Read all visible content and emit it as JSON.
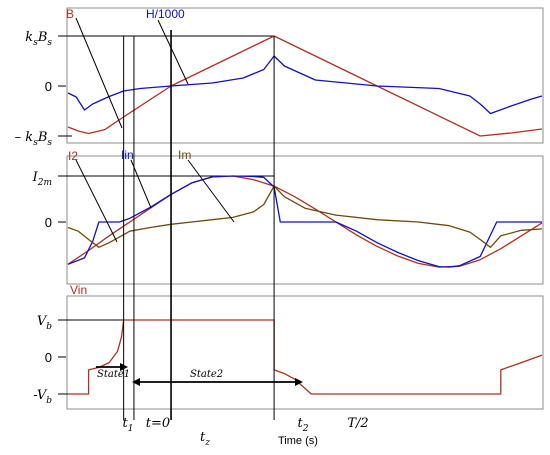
{
  "chart_data": [
    {
      "type": "line",
      "panel": "flux",
      "y_tick_labels": [
        {
          "label": "k_s B_s",
          "main": "k",
          "sub": "s",
          "main2": "B",
          "sub2": "s",
          "y": 1
        },
        {
          "label": "0",
          "y": 0
        },
        {
          "label": "– k_s B_s",
          "main": "– k",
          "sub": "s",
          "main2": "B",
          "sub2": "s",
          "y": -1
        }
      ],
      "ylim": [
        -1.1,
        1.1
      ],
      "series": [
        {
          "name": "B",
          "color": "#b03020",
          "points": [
            [
              0,
              -0.82
            ],
            [
              0.05,
              -0.9
            ],
            [
              0.1,
              -0.95
            ],
            [
              0.18,
              -0.87
            ],
            [
              0.24,
              -0.7
            ],
            [
              0.27,
              -0.62
            ],
            [
              0.5,
              0.0
            ],
            [
              1.0,
              1.0
            ],
            [
              1.5,
              0.0
            ],
            [
              2.0,
              -1.0
            ],
            [
              2.15,
              -0.94
            ],
            [
              2.3,
              -0.86
            ]
          ]
        },
        {
          "name": "H/1000",
          "color": "#1010cc",
          "points": [
            [
              0,
              -0.14
            ],
            [
              0.04,
              -0.22
            ],
            [
              0.08,
              -0.48
            ],
            [
              0.12,
              -0.36
            ],
            [
              0.2,
              -0.21
            ],
            [
              0.27,
              -0.1
            ],
            [
              0.35,
              -0.05
            ],
            [
              0.5,
              0.0
            ],
            [
              0.7,
              0.06
            ],
            [
              0.85,
              0.16
            ],
            [
              0.95,
              0.33
            ],
            [
              1.0,
              0.6
            ],
            [
              1.05,
              0.4
            ],
            [
              1.2,
              0.12
            ],
            [
              1.5,
              0.0
            ],
            [
              1.8,
              -0.05
            ],
            [
              1.95,
              -0.2
            ],
            [
              2.0,
              -0.36
            ],
            [
              2.05,
              -0.55
            ],
            [
              2.15,
              -0.4
            ],
            [
              2.25,
              -0.26
            ],
            [
              2.3,
              -0.2
            ]
          ]
        }
      ]
    },
    {
      "type": "line",
      "panel": "currents",
      "y_tick_labels": [
        {
          "label": "I_2m",
          "main": "I",
          "sub": "2m",
          "y": 1
        },
        {
          "label": "0",
          "y": 0
        }
      ],
      "ylim": [
        -1.05,
        1.25
      ],
      "series": [
        {
          "name": "I2",
          "color": "#b03020",
          "points": [
            [
              0,
              -0.92
            ],
            [
              0.1,
              -0.62
            ],
            [
              0.2,
              -0.3
            ],
            [
              0.3,
              0.0
            ],
            [
              0.4,
              0.3
            ],
            [
              0.5,
              0.6
            ],
            [
              0.6,
              0.85
            ],
            [
              0.7,
              0.98
            ],
            [
              0.8,
              1.0
            ],
            [
              0.9,
              0.92
            ],
            [
              1.0,
              0.78
            ],
            [
              1.1,
              0.55
            ],
            [
              1.2,
              0.28
            ],
            [
              1.3,
              0.0
            ],
            [
              1.4,
              -0.28
            ],
            [
              1.5,
              -0.53
            ],
            [
              1.6,
              -0.74
            ],
            [
              1.7,
              -0.9
            ],
            [
              1.8,
              -0.98
            ],
            [
              1.9,
              -0.96
            ],
            [
              2.0,
              -0.82
            ],
            [
              2.1,
              -0.58
            ],
            [
              2.2,
              -0.3
            ],
            [
              2.3,
              -0.02
            ]
          ]
        },
        {
          "name": "Iin",
          "color": "#1010cc",
          "points": [
            [
              0,
              -0.92
            ],
            [
              0.08,
              -0.78
            ],
            [
              0.12,
              -0.42
            ],
            [
              0.15,
              0.0
            ],
            [
              0.25,
              0.0
            ],
            [
              0.3,
              0.08
            ],
            [
              0.4,
              0.32
            ],
            [
              0.5,
              0.6
            ],
            [
              0.6,
              0.85
            ],
            [
              0.7,
              0.98
            ],
            [
              0.8,
              1.0
            ],
            [
              0.9,
              0.99
            ],
            [
              0.95,
              0.97
            ],
            [
              1.0,
              0.76
            ],
            [
              1.03,
              0.0
            ],
            [
              1.2,
              0.0
            ],
            [
              1.3,
              0.0
            ],
            [
              1.4,
              -0.2
            ],
            [
              1.5,
              -0.45
            ],
            [
              1.6,
              -0.66
            ],
            [
              1.7,
              -0.84
            ],
            [
              1.8,
              -0.97
            ],
            [
              1.85,
              -0.98
            ],
            [
              1.9,
              -0.95
            ],
            [
              2.0,
              -0.75
            ],
            [
              2.08,
              0.0
            ],
            [
              2.3,
              0.0
            ]
          ]
        },
        {
          "name": "Im",
          "color": "#6e4a0a",
          "points": [
            [
              0,
              -0.12
            ],
            [
              0.05,
              -0.2
            ],
            [
              0.1,
              -0.38
            ],
            [
              0.15,
              -0.55
            ],
            [
              0.2,
              -0.45
            ],
            [
              0.3,
              -0.2
            ],
            [
              0.4,
              -0.12
            ],
            [
              0.5,
              -0.05
            ],
            [
              0.6,
              0.0
            ],
            [
              0.7,
              0.05
            ],
            [
              0.8,
              0.1
            ],
            [
              0.9,
              0.22
            ],
            [
              0.95,
              0.38
            ],
            [
              1.0,
              0.78
            ],
            [
              1.05,
              0.55
            ],
            [
              1.15,
              0.3
            ],
            [
              1.3,
              0.15
            ],
            [
              1.5,
              0.05
            ],
            [
              1.7,
              0.0
            ],
            [
              1.85,
              -0.08
            ],
            [
              1.95,
              -0.22
            ],
            [
              2.0,
              -0.38
            ],
            [
              2.05,
              -0.55
            ],
            [
              2.1,
              -0.3
            ],
            [
              2.2,
              -0.18
            ],
            [
              2.3,
              -0.15
            ]
          ]
        }
      ]
    },
    {
      "type": "line",
      "panel": "voltage",
      "y_tick_labels": [
        {
          "label": "V_b",
          "main": "V",
          "sub": "b",
          "y": 1
        },
        {
          "label": "0",
          "y": 0
        },
        {
          "label": "-V_b",
          "main": "-V",
          "sub": "b",
          "y": -1
        }
      ],
      "ylim": [
        -1.3,
        1.3
      ],
      "series": [
        {
          "name": "Vin",
          "color": "#b03020",
          "points": [
            [
              0,
              -1.0
            ],
            [
              0.1,
              -1.0
            ],
            [
              0.1,
              -0.35
            ],
            [
              0.15,
              -0.28
            ],
            [
              0.2,
              -0.15
            ],
            [
              0.24,
              0.15
            ],
            [
              0.26,
              0.55
            ],
            [
              0.27,
              1.0
            ],
            [
              1.0,
              1.0
            ],
            [
              1.0,
              -0.35
            ],
            [
              1.05,
              -0.45
            ],
            [
              1.1,
              -0.6
            ],
            [
              1.15,
              -0.85
            ],
            [
              1.18,
              -1.0
            ],
            [
              1.55,
              -1.0
            ],
            [
              1.9,
              -1.0
            ],
            [
              2.1,
              -1.0
            ],
            [
              2.1,
              -0.35
            ],
            [
              2.2,
              -0.15
            ],
            [
              2.3,
              0.05
            ]
          ]
        }
      ]
    }
  ],
  "legend_labels": {
    "B": "B",
    "H": "H/1000",
    "I2": "I2",
    "Iin": "Iin",
    "Im": "Im",
    "Vin": "Vin"
  },
  "state_labels": {
    "state1": "State1",
    "state2": "State2"
  },
  "time_markers": [
    {
      "id": "t1",
      "main": "t",
      "sub": "1",
      "x": 0.27
    },
    {
      "id": "t0",
      "main": "t=0",
      "sub": "",
      "x": 0.32
    },
    {
      "id": "tz",
      "main": "t",
      "sub": "z",
      "x": 0.5
    },
    {
      "id": "t2",
      "main": "t",
      "sub": "2",
      "x": 1.0
    },
    {
      "id": "thalf",
      "main": "T/2",
      "sub": "",
      "x": 1.18
    }
  ],
  "xlabel": "Time (s)",
  "colors": {
    "red": "#b03020",
    "blue": "#1010cc",
    "brown": "#6e4a0a",
    "frame": "#808080",
    "marker": "#000000"
  }
}
